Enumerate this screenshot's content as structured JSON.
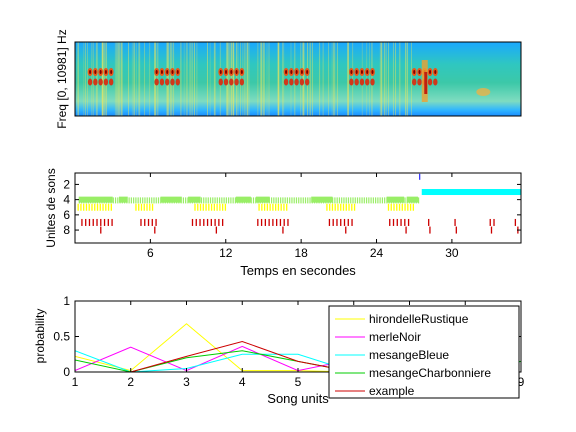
{
  "chart_data": [
    {
      "type": "heatmap",
      "ylabel": "Freq [0, 10981] Hz",
      "xlabel": "",
      "description_source": "spectrogram"
    },
    {
      "type": "scatter",
      "xlabel": "Temps en secondes",
      "ylabel": "Unites de sons",
      "xlim": [
        0,
        35.5
      ],
      "ylim": [
        9.7,
        0.5
      ],
      "xticks": [
        6,
        12,
        18,
        24,
        30
      ],
      "yticks": [
        2,
        4,
        6,
        8
      ],
      "rows": [
        {
          "y": 1,
          "color": "#0000ff",
          "segments": [
            [
              27.4,
              27.45
            ]
          ]
        },
        {
          "y": 3,
          "color": "#00ffff",
          "segments": [
            [
              27.6,
              35.5
            ]
          ]
        },
        {
          "y": 4,
          "color": "#99ee66",
          "segments": [
            [
              0.3,
              3.0
            ],
            [
              3.5,
              4.2
            ],
            [
              6.8,
              8.5
            ],
            [
              9.0,
              10.0
            ],
            [
              12.8,
              14.0
            ],
            [
              14.4,
              15.5
            ],
            [
              18.8,
              20.5
            ],
            [
              24.8,
              26.2
            ],
            [
              26.4,
              27.3
            ]
          ]
        },
        {
          "y": 4.1,
          "color": "#99ee66",
          "ticks_from": 0.3,
          "ticks_to": 27.3,
          "tick_step": 0.18
        },
        {
          "y": 5,
          "color": "#ffff00",
          "groups": [
            [
              0.2,
              3.0
            ],
            [
              4.8,
              6.3
            ],
            [
              9.5,
              12.0
            ],
            [
              14.6,
              17.0
            ],
            [
              20.0,
              22.3
            ],
            [
              24.9,
              27.0
            ]
          ],
          "tick_step": 0.22
        },
        {
          "y": 6,
          "color": "#000000",
          "points": []
        },
        {
          "y": 7,
          "color": "#cc0000",
          "groups": [
            [
              0.5,
              3.0
            ],
            [
              5.2,
              6.5
            ],
            [
              9.3,
              11.8
            ],
            [
              14.5,
              17.2
            ],
            [
              20.2,
              22.2
            ],
            [
              25.0,
              26.8
            ]
          ],
          "tick_step": 0.3,
          "extra": [
            28.1,
            30.2,
            33.0,
            33.3,
            35.0
          ]
        },
        {
          "y": 8,
          "color": "#cc0000",
          "points": [
            2.0,
            6.3,
            11.2,
            16.5,
            21.5,
            26.3,
            28.2,
            30.3,
            33.1,
            35.2
          ]
        }
      ]
    },
    {
      "type": "line",
      "xlabel": "Song units",
      "ylabel": "probability",
      "x": [
        1,
        2,
        3,
        4,
        5,
        6,
        7,
        8,
        9
      ],
      "xlim": [
        1,
        9
      ],
      "ylim": [
        0,
        1
      ],
      "xticks": [
        1,
        2,
        3,
        4,
        5,
        6,
        7,
        8,
        9
      ],
      "yticks": [
        0,
        0.5,
        1
      ],
      "legend_position": "right",
      "series": [
        {
          "name": "hirondelleRustique",
          "color": "#ffff00",
          "values": [
            0.22,
            0.02,
            0.68,
            0.02,
            0.02,
            0.0,
            0.0,
            0.0,
            0.0
          ]
        },
        {
          "name": "merleNoir",
          "color": "#ff00ff",
          "values": [
            0.02,
            0.35,
            0.02,
            0.36,
            0.02,
            0.18,
            0.0,
            0.0,
            0.0
          ]
        },
        {
          "name": "mesangeBleue",
          "color": "#00ffff",
          "values": [
            0.3,
            0.0,
            0.05,
            0.25,
            0.25,
            0.0,
            0.0,
            0.0,
            0.15
          ]
        },
        {
          "name": "mesangeCharbonniere",
          "color": "#00cc00",
          "values": [
            0.17,
            0.0,
            0.2,
            0.3,
            0.15,
            0.0,
            0.0,
            0.0,
            0.15
          ]
        },
        {
          "name": "example",
          "color": "#cc0000",
          "values": [
            0.0,
            0.0,
            0.22,
            0.43,
            0.15,
            0.0,
            0.0,
            0.0,
            0.0
          ]
        }
      ]
    }
  ],
  "legend_labels": [
    "hirondelleRustique",
    "merleNoir",
    "mesangeBleue",
    "mesangeCharbonniere",
    "example"
  ]
}
